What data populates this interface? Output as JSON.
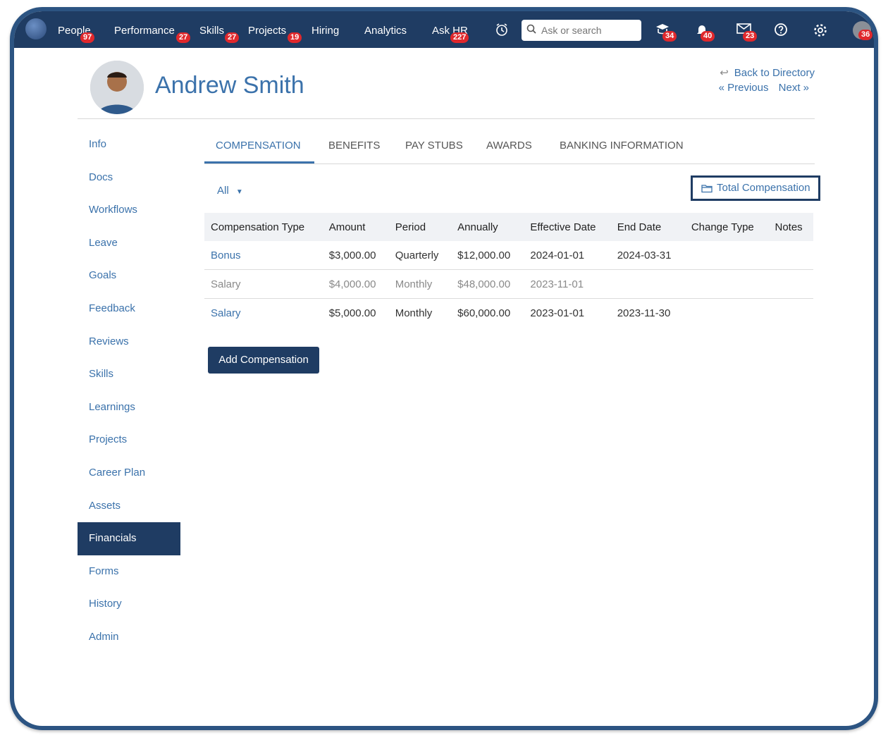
{
  "nav": {
    "items": [
      {
        "label": "People",
        "badge": "97"
      },
      {
        "label": "Performance",
        "badge": "27"
      },
      {
        "label": "Skills",
        "badge": "27"
      },
      {
        "label": "Projects",
        "badge": "19"
      },
      {
        "label": "Hiring",
        "badge": ""
      },
      {
        "label": "Analytics",
        "badge": ""
      },
      {
        "label": "Ask HR",
        "badge": "227"
      }
    ],
    "search_placeholder": "Ask or search",
    "icon_badges": {
      "tasks": "34",
      "notifications": "40",
      "messages": "23",
      "profile": "36"
    }
  },
  "profile": {
    "name": "Andrew Smith",
    "back_label": "Back to Directory",
    "previous_label": "« Previous",
    "next_label": "Next »"
  },
  "sidebar": {
    "items": [
      "Info",
      "Docs",
      "Workflows",
      "Leave",
      "Goals",
      "Feedback",
      "Reviews",
      "Skills",
      "Learnings",
      "Projects",
      "Career Plan",
      "Assets",
      "Financials",
      "Forms",
      "History",
      "Admin"
    ],
    "active": "Financials"
  },
  "tabs": [
    "COMPENSATION",
    "BENEFITS",
    "PAY STUBS",
    "AWARDS",
    "BANKING INFORMATION"
  ],
  "filter_label": "All",
  "total_comp_label": "Total Compensation",
  "table": {
    "headers": [
      "Compensation Type",
      "Amount",
      "Period",
      "Annually",
      "Effective Date",
      "End Date",
      "Change Type",
      "Notes"
    ],
    "rows": [
      [
        "Bonus",
        "$3,000.00",
        "Quarterly",
        "$12,000.00",
        "2024-01-01",
        "2024-03-31",
        "",
        ""
      ],
      [
        "Salary",
        "$4,000.00",
        "Monthly",
        "$48,000.00",
        "2023-11-01",
        "",
        "",
        ""
      ],
      [
        "Salary",
        "$5,000.00",
        "Monthly",
        "$60,000.00",
        "2023-01-01",
        "2023-11-30",
        "",
        ""
      ]
    ]
  },
  "add_label": "Add Compensation",
  "colors": {
    "primary": "#1f3c63",
    "link": "#3b72ab",
    "badge": "#e0282c"
  }
}
